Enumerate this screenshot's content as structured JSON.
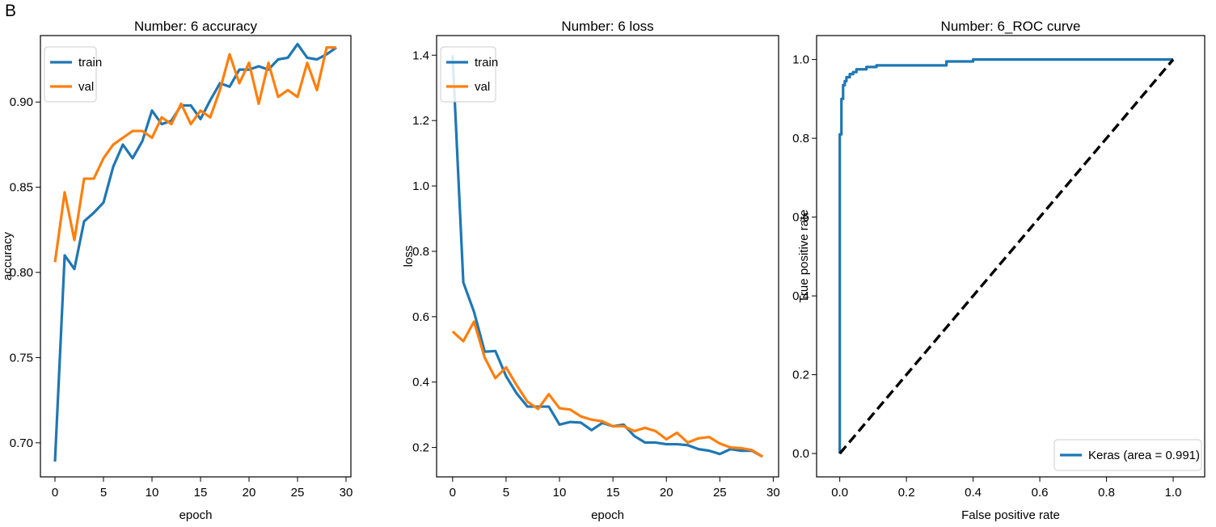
{
  "figure": {
    "panel_label": "B"
  },
  "colors": {
    "train": "#1f77b4",
    "val": "#ff7f0e",
    "diagonal": "#000000",
    "roc": "#1f77b4"
  },
  "chart_data": [
    {
      "type": "line",
      "title": "Number: 6 accuracy",
      "xlabel": "epoch",
      "ylabel": "accuracy",
      "xlim": [
        -1.5,
        30.5
      ],
      "ylim": [
        0.68,
        0.939
      ],
      "xticks": [
        0,
        5,
        10,
        15,
        20,
        25,
        30
      ],
      "xtick_labels": [
        "0",
        "5",
        "10",
        "15",
        "20",
        "25",
        "30"
      ],
      "yticks": [
        0.7,
        0.75,
        0.8,
        0.85,
        0.9
      ],
      "ytick_labels": [
        "0.70",
        "0.75",
        "0.80",
        "0.85",
        "0.90"
      ],
      "legend": {
        "position": "top-left",
        "entries": [
          "train",
          "val"
        ]
      },
      "grid": false,
      "series": [
        {
          "name": "train",
          "color": "#1f77b4",
          "x": [
            0,
            1,
            2,
            3,
            4,
            5,
            6,
            7,
            8,
            9,
            10,
            11,
            12,
            13,
            14,
            15,
            16,
            17,
            18,
            19,
            20,
            21,
            22,
            23,
            24,
            25,
            26,
            27,
            28,
            29
          ],
          "y": [
            0.689,
            0.81,
            0.802,
            0.83,
            0.835,
            0.841,
            0.862,
            0.875,
            0.867,
            0.877,
            0.895,
            0.887,
            0.889,
            0.898,
            0.898,
            0.89,
            0.901,
            0.911,
            0.909,
            0.919,
            0.919,
            0.921,
            0.919,
            0.925,
            0.926,
            0.934,
            0.926,
            0.925,
            0.928,
            0.932
          ]
        },
        {
          "name": "val",
          "color": "#ff7f0e",
          "x": [
            0,
            1,
            2,
            3,
            4,
            5,
            6,
            7,
            8,
            9,
            10,
            11,
            12,
            13,
            14,
            15,
            16,
            17,
            18,
            19,
            20,
            21,
            22,
            23,
            24,
            25,
            26,
            27,
            28,
            29
          ],
          "y": [
            0.806,
            0.847,
            0.819,
            0.855,
            0.855,
            0.867,
            0.875,
            0.879,
            0.883,
            0.883,
            0.879,
            0.891,
            0.887,
            0.899,
            0.887,
            0.895,
            0.891,
            0.907,
            0.928,
            0.911,
            0.923,
            0.899,
            0.923,
            0.903,
            0.907,
            0.903,
            0.923,
            0.907,
            0.932,
            0.932
          ]
        }
      ]
    },
    {
      "type": "line",
      "title": "Number: 6 loss",
      "xlabel": "epoch",
      "ylabel": "loss",
      "xlim": [
        -1.5,
        30.5
      ],
      "ylim": [
        0.11,
        1.46
      ],
      "xticks": [
        0,
        5,
        10,
        15,
        20,
        25,
        30
      ],
      "xtick_labels": [
        "0",
        "5",
        "10",
        "15",
        "20",
        "25",
        "30"
      ],
      "yticks": [
        0.2,
        0.4,
        0.6,
        0.8,
        1.0,
        1.2,
        1.4
      ],
      "ytick_labels": [
        "0.2",
        "0.4",
        "0.6",
        "0.8",
        "1.0",
        "1.2",
        "1.4"
      ],
      "legend": {
        "position": "top-left",
        "entries": [
          "train",
          "val"
        ]
      },
      "grid": false,
      "series": [
        {
          "name": "train",
          "color": "#1f77b4",
          "x": [
            0,
            1,
            2,
            3,
            4,
            5,
            6,
            7,
            8,
            9,
            10,
            11,
            12,
            13,
            14,
            15,
            16,
            17,
            18,
            19,
            20,
            21,
            22,
            23,
            24,
            25,
            26,
            27,
            28,
            29
          ],
          "y": [
            1.4,
            0.705,
            0.615,
            0.493,
            0.495,
            0.418,
            0.365,
            0.325,
            0.325,
            0.325,
            0.27,
            0.278,
            0.276,
            0.253,
            0.275,
            0.265,
            0.27,
            0.235,
            0.215,
            0.215,
            0.21,
            0.21,
            0.207,
            0.195,
            0.19,
            0.18,
            0.195,
            0.19,
            0.19,
            0.172
          ]
        },
        {
          "name": "val",
          "color": "#ff7f0e",
          "x": [
            0,
            1,
            2,
            3,
            4,
            5,
            6,
            7,
            8,
            9,
            10,
            11,
            12,
            13,
            14,
            15,
            16,
            17,
            18,
            19,
            20,
            21,
            22,
            23,
            24,
            25,
            26,
            27,
            28,
            29
          ],
          "y": [
            0.555,
            0.525,
            0.585,
            0.475,
            0.412,
            0.445,
            0.39,
            0.34,
            0.318,
            0.363,
            0.32,
            0.316,
            0.295,
            0.285,
            0.28,
            0.265,
            0.265,
            0.25,
            0.26,
            0.25,
            0.225,
            0.245,
            0.215,
            0.228,
            0.232,
            0.212,
            0.2,
            0.198,
            0.192,
            0.172
          ]
        }
      ]
    },
    {
      "type": "line",
      "title": "Number:  6_ROC curve",
      "xlabel": "False positive rate",
      "ylabel": "True positive rate",
      "xlim": [
        -0.0695,
        1.0945
      ],
      "ylim": [
        -0.0593,
        1.0607
      ],
      "xticks": [
        0.0,
        0.2,
        0.4,
        0.6,
        0.8,
        1.0
      ],
      "xtick_labels": [
        "0.0",
        "0.2",
        "0.4",
        "0.6",
        "0.8",
        "1.0"
      ],
      "yticks": [
        0.0,
        0.2,
        0.4,
        0.6,
        0.8,
        1.0
      ],
      "ytick_labels": [
        "0.0",
        "0.2",
        "0.4",
        "0.6",
        "0.8",
        "1.0"
      ],
      "legend": {
        "position": "bottom-right",
        "entries": [
          "Keras (area = 0.991)"
        ]
      },
      "grid": false,
      "series": [
        {
          "name": "Keras (area = 0.991)",
          "color": "#1f77b4",
          "style": "solid",
          "x": [
            0,
            0,
            0.005,
            0.005,
            0.01,
            0.01,
            0.015,
            0.015,
            0.02,
            0.02,
            0.03,
            0.03,
            0.04,
            0.04,
            0.05,
            0.05,
            0.08,
            0.08,
            0.11,
            0.11,
            0.32,
            0.32,
            0.4,
            0.4,
            1.0
          ],
          "y": [
            0,
            0.81,
            0.81,
            0.9,
            0.9,
            0.935,
            0.935,
            0.945,
            0.945,
            0.955,
            0.955,
            0.963,
            0.963,
            0.968,
            0.968,
            0.975,
            0.975,
            0.981,
            0.981,
            0.985,
            0.985,
            0.995,
            0.995,
            1.0,
            1.0
          ]
        },
        {
          "name": "",
          "color": "#000000",
          "style": "dashed",
          "x": [
            0,
            1
          ],
          "y": [
            0,
            1
          ]
        }
      ]
    }
  ]
}
